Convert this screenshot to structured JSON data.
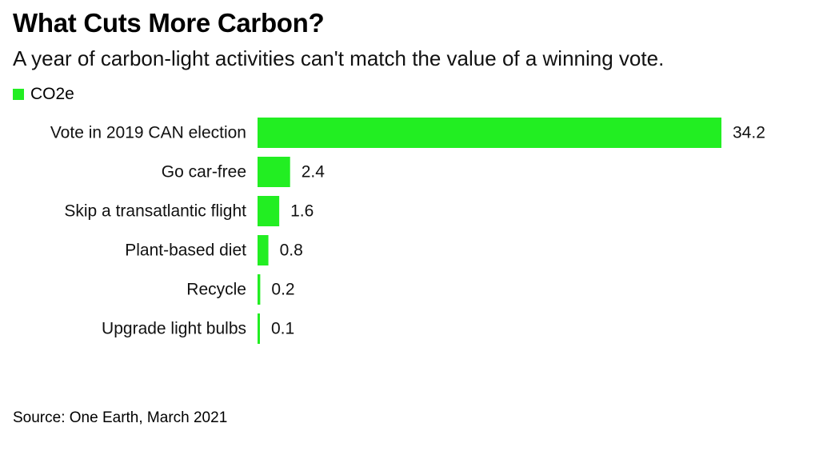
{
  "header": {
    "title": "What Cuts More Carbon?",
    "subtitle": "A year of carbon-light activities can't match the value of a winning vote."
  },
  "footer": {
    "source": "Source: One Earth, March 2021"
  },
  "colors": {
    "bar": "#22ee22"
  },
  "chart_data": {
    "type": "bar",
    "orientation": "horizontal",
    "title": "What Cuts More Carbon?",
    "subtitle": "A year of carbon-light activities can't match the value of a winning vote.",
    "legend": [
      "CO2e"
    ],
    "categories": [
      "Vote in 2019 CAN election",
      "Go car-free",
      "Skip a transatlantic flight",
      "Plant-based diet",
      "Recycle",
      "Upgrade light bulbs"
    ],
    "series": [
      {
        "name": "CO2e",
        "values": [
          34.2,
          2.4,
          1.6,
          0.8,
          0.2,
          0.1
        ]
      }
    ],
    "value_labels": [
      "34.2",
      "2.4",
      "1.6",
      "0.8",
      "0.2",
      "0.1"
    ],
    "xlim": [
      0,
      34.2
    ],
    "grid": false,
    "legend_position": "top-left"
  }
}
